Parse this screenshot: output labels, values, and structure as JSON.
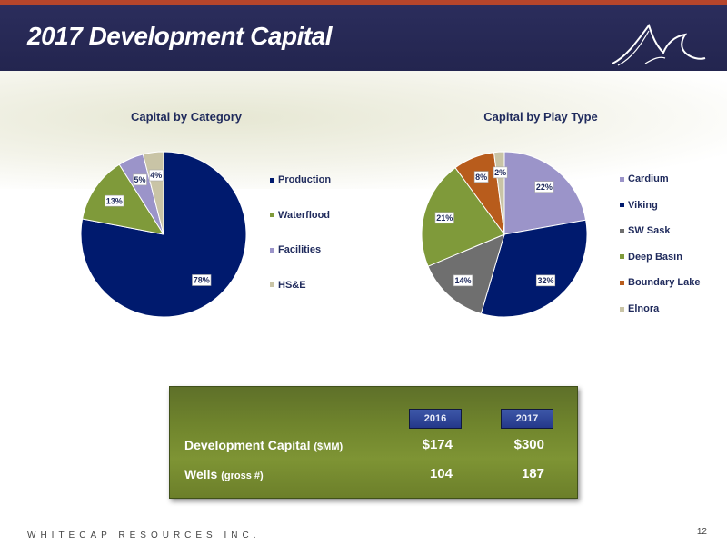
{
  "slide": {
    "title": "2017 Development Capital",
    "company_footer": "WHITECAP RESOURCES INC.",
    "page_number": "12",
    "accent_color": "#b6452b",
    "header_color": "#2b2d5c"
  },
  "chart_data": [
    {
      "type": "pie",
      "title": "Capital by Category",
      "categories": [
        "Production",
        "Waterflood",
        "Facilities",
        "HS&E"
      ],
      "values": [
        78,
        13,
        5,
        4
      ],
      "labels": [
        "78%",
        "13%",
        "5%",
        "4%"
      ],
      "colors": [
        "#001a6e",
        "#7f9a3a",
        "#9b94c9",
        "#c9c4a6"
      ],
      "legend_position": "right"
    },
    {
      "type": "pie",
      "title": "Capital by Play Type",
      "categories": [
        "Cardium",
        "Viking",
        "SW Sask",
        "Deep Basin",
        "Boundary Lake",
        "Elnora"
      ],
      "values": [
        22,
        32,
        14,
        21,
        8,
        2
      ],
      "labels": [
        "22%",
        "32%",
        "14%",
        "21%",
        "8%",
        "2%"
      ],
      "colors": [
        "#9b94c9",
        "#001a6e",
        "#6f6f6f",
        "#7f9a3a",
        "#b85c1c",
        "#c9c4a6"
      ],
      "legend_position": "right"
    }
  ],
  "summary_table": {
    "years": [
      "2016",
      "2017"
    ],
    "rows": [
      {
        "label": "Development Capital",
        "unit": "($MM)",
        "values": [
          "$174",
          "$300"
        ]
      },
      {
        "label": "Wells",
        "unit": "(gross #)",
        "values": [
          "104",
          "187"
        ]
      }
    ]
  }
}
